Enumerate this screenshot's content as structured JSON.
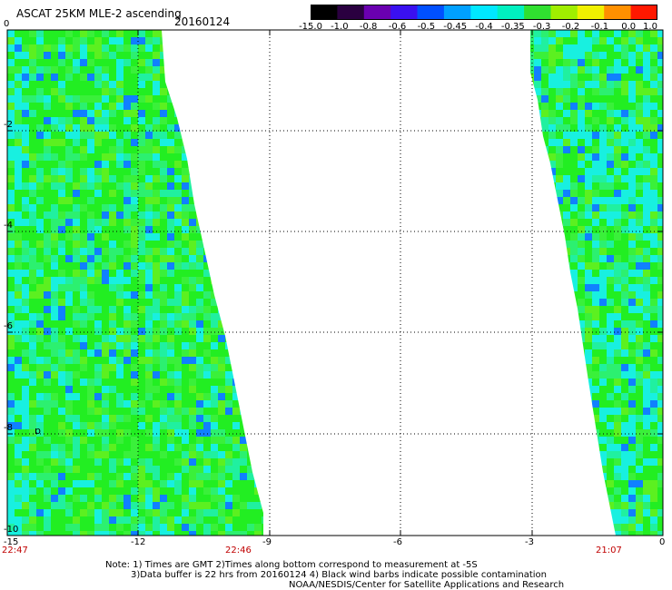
{
  "title": "ASCAT 25KM MLE-2 ascending",
  "date": "20160124",
  "colorbar": {
    "labels": [
      "-15.0",
      "-1.0",
      "-0.8",
      "-0.6",
      "-0.5",
      "-0.45",
      "-0.4",
      "-0.35",
      "-0.3",
      "-0.2",
      "-0.1",
      "0.0",
      "1.0"
    ],
    "colors": [
      "#000000",
      "#2a0040",
      "#6a00b0",
      "#3a10f0",
      "#0050ff",
      "#00a0ff",
      "#00e8ff",
      "#00f0c0",
      "#30e030",
      "#a0ee00",
      "#f0f000",
      "#ff9000",
      "#ff1800"
    ]
  },
  "axes": {
    "x_ticks": [
      "-15",
      "-12",
      "-9",
      "-6",
      "-3",
      "0"
    ],
    "y_ticks": [
      "0",
      "-2",
      "-4",
      "-6",
      "-8",
      "-10"
    ],
    "times": [
      "22:47",
      "22:46",
      "21:07"
    ]
  },
  "colors": {
    "swath_green": "#22ee22",
    "swath_cyan": "#18f0e0",
    "swath_blue": "#1080ff",
    "time_red": "#c00000"
  },
  "notes": {
    "line1": "Note: 1) Times are GMT 2)Times along bottom correspond to measurement at -5S",
    "line2": "3)Data buffer is 22 hrs from 20160124 4) Black wind barbs indicate possible contamination",
    "line3": "NOAA/NESDIS/Center for Satellite Applications and Research"
  }
}
